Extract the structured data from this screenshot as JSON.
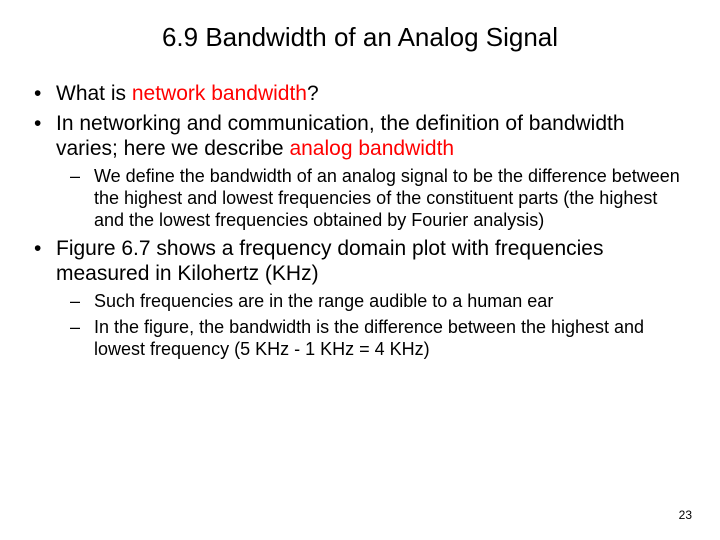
{
  "title": "6.9  Bandwidth of an Analog Signal",
  "bullets": {
    "b1_pre": "What is ",
    "b1_hl": "network bandwidth",
    "b1_post": "?",
    "b2_pre": "In networking and communication, the definition of bandwidth varies; here we describe ",
    "b2_hl": "analog bandwidth",
    "b2_sub1": "We define the bandwidth of an analog signal to be the difference between the highest and lowest frequencies of the constituent parts (the highest and the lowest frequencies obtained by Fourier analysis)",
    "b3": "Figure 6.7 shows a frequency domain plot with frequencies measured in Kilohertz (KHz)",
    "b3_sub1": "Such frequencies are in the range audible to a human ear",
    "b3_sub2": "In the figure, the bandwidth is the difference between the highest and lowest frequency (5 KHz - 1 KHz = 4 KHz)"
  },
  "page_number": "23"
}
